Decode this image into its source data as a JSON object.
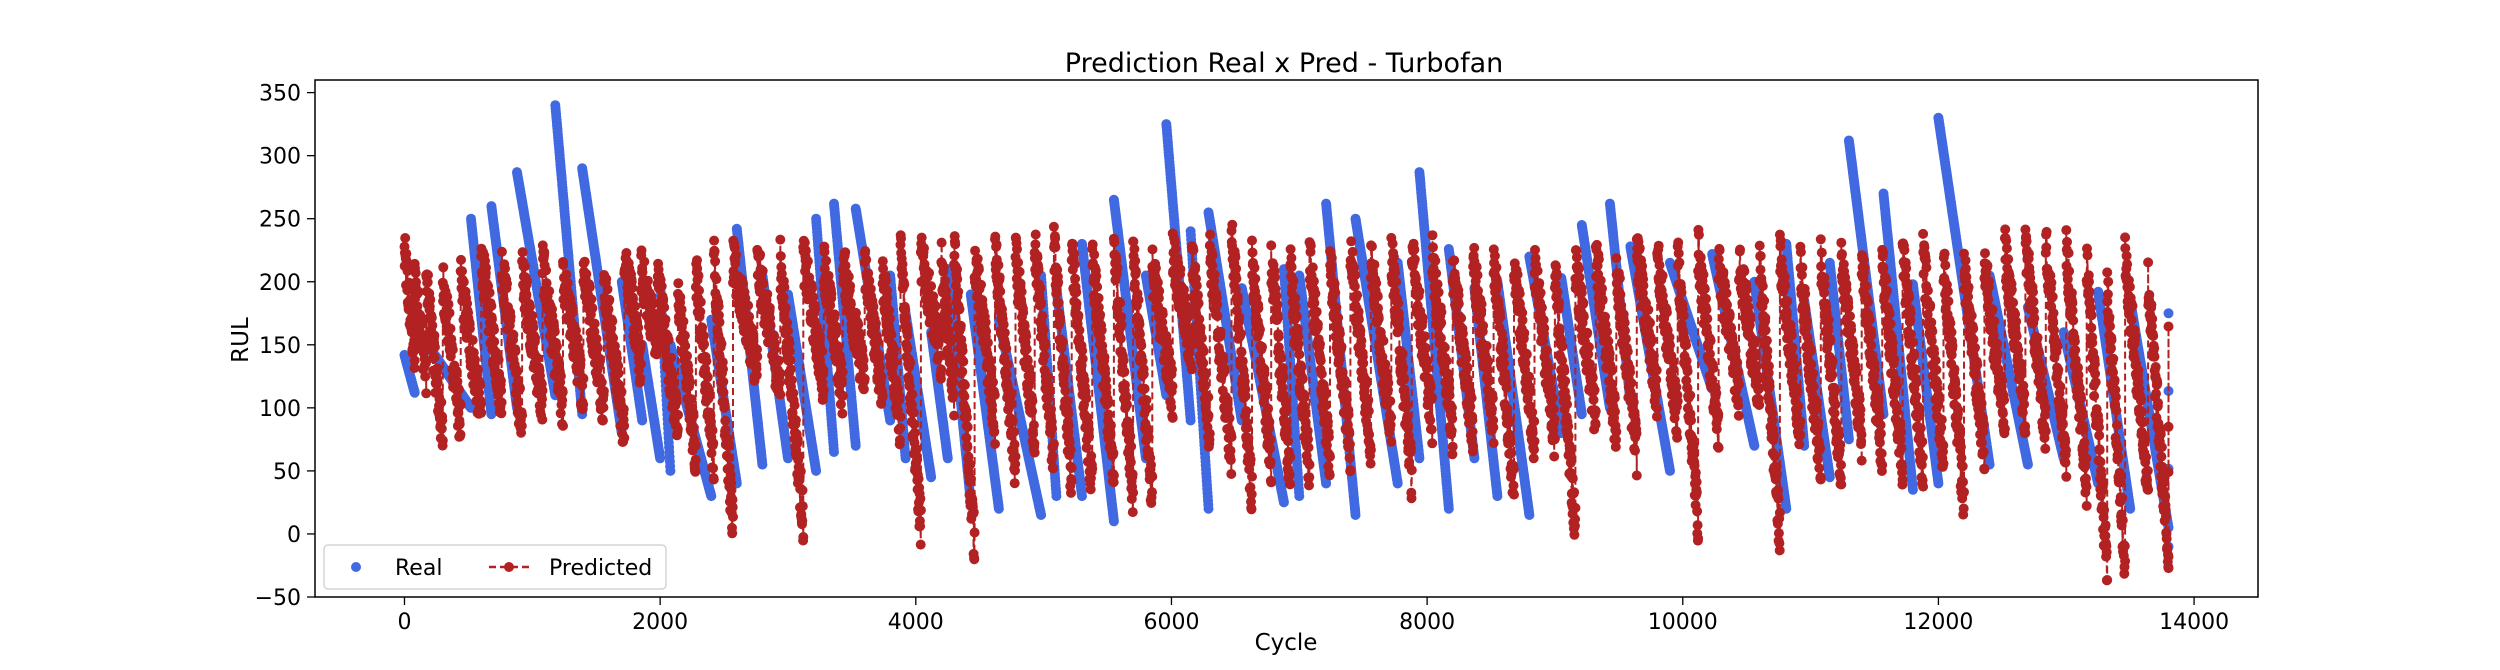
{
  "chart_data": {
    "type": "line",
    "title": "Prediction Real x Pred - Turbofan",
    "xlabel": "Cycle",
    "ylabel": "RUL",
    "xlim": [
      -700,
      14500
    ],
    "ylim": [
      -50,
      360
    ],
    "xticks": [
      0,
      2000,
      4000,
      6000,
      8000,
      10000,
      12000,
      14000
    ],
    "xtick_labels": [
      "0",
      "2000",
      "4000",
      "6000",
      "8000",
      "10000",
      "12000",
      "14000"
    ],
    "yticks": [
      -50,
      0,
      50,
      100,
      150,
      200,
      250,
      300,
      350
    ],
    "ytick_labels": [
      "−50",
      "0",
      "50",
      "100",
      "150",
      "200",
      "250",
      "300",
      "350"
    ],
    "grid": false,
    "legend": {
      "location": "lower-left",
      "columns": 2
    },
    "x_range": [
      0,
      13800
    ],
    "series": [
      {
        "name": "Real",
        "style": "markers",
        "color": "#4169e1",
        "note": "Sawtooth: each engine unit ramps down from a start RUL to an end RUL.",
        "segments": [
          [
            0,
            142,
            112
          ],
          [
            80,
            165,
            100
          ],
          [
            520,
            250,
            95
          ],
          [
            680,
            260,
            100
          ],
          [
            880,
            287,
            110
          ],
          [
            1180,
            340,
            95
          ],
          [
            1390,
            290,
            80
          ],
          [
            1700,
            200,
            90
          ],
          [
            1860,
            150,
            60
          ],
          [
            2000,
            200,
            50
          ],
          [
            2080,
            150,
            30
          ],
          [
            2400,
            170,
            40
          ],
          [
            2600,
            242,
            55
          ],
          [
            2800,
            205,
            60
          ],
          [
            3000,
            190,
            50
          ],
          [
            3220,
            250,
            65
          ],
          [
            3360,
            262,
            70
          ],
          [
            3530,
            258,
            90
          ],
          [
            3800,
            205,
            60
          ],
          [
            3920,
            175,
            45
          ],
          [
            4120,
            160,
            60
          ],
          [
            4250,
            210,
            25
          ],
          [
            4430,
            190,
            20
          ],
          [
            4650,
            170,
            15
          ],
          [
            4980,
            205,
            30
          ],
          [
            5100,
            195,
            30
          ],
          [
            5300,
            230,
            10
          ],
          [
            5550,
            265,
            60
          ],
          [
            5800,
            205,
            110
          ],
          [
            5960,
            325,
            90
          ],
          [
            6150,
            240,
            20
          ],
          [
            6290,
            255,
            90
          ],
          [
            6550,
            195,
            25
          ],
          [
            6880,
            210,
            30
          ],
          [
            7000,
            205,
            40
          ],
          [
            7210,
            262,
            15
          ],
          [
            7440,
            250,
            40
          ],
          [
            7770,
            215,
            60
          ],
          [
            7940,
            287,
            20
          ],
          [
            8170,
            226,
            60
          ],
          [
            8370,
            195,
            30
          ],
          [
            8550,
            200,
            15
          ],
          [
            8800,
            220,
            80
          ],
          [
            9050,
            203,
            95
          ],
          [
            9210,
            245,
            100
          ],
          [
            9430,
            262,
            105
          ],
          [
            9590,
            228,
            50
          ],
          [
            9900,
            215,
            115
          ],
          [
            10230,
            222,
            70
          ],
          [
            10560,
            200,
            20
          ],
          [
            10810,
            230,
            70
          ],
          [
            10950,
            185,
            45
          ],
          [
            11150,
            215,
            75
          ],
          [
            11300,
            312,
            95
          ],
          [
            11570,
            270,
            35
          ],
          [
            11800,
            198,
            40
          ],
          [
            12000,
            330,
            55
          ],
          [
            12400,
            205,
            55
          ],
          [
            12700,
            180,
            60
          ],
          [
            12980,
            160,
            40
          ],
          [
            13250,
            192,
            20
          ],
          [
            13500,
            185,
            5
          ],
          [
            13800,
            175,
            -10
          ]
        ]
      },
      {
        "name": "Predicted",
        "style": "dashed-line-with-markers",
        "color": "#b22222",
        "note": "Noisy descending sawtooth following each engine unit.",
        "segments": [
          [
            0,
            222,
            140
          ],
          [
            80,
            200,
            130
          ],
          [
            170,
            200,
            75
          ],
          [
            300,
            200,
            85
          ],
          [
            440,
            200,
            95
          ],
          [
            600,
            220,
            105
          ],
          [
            760,
            215,
            85
          ],
          [
            920,
            210,
            100
          ],
          [
            1080,
            215,
            95
          ],
          [
            1240,
            205,
            110
          ],
          [
            1400,
            215,
            100
          ],
          [
            1560,
            200,
            80
          ],
          [
            1720,
            225,
            130
          ],
          [
            1850,
            210,
            150
          ],
          [
            1980,
            205,
            80
          ],
          [
            2140,
            190,
            60
          ],
          [
            2280,
            210,
            55
          ],
          [
            2420,
            220,
            5
          ],
          [
            2570,
            215,
            130
          ],
          [
            2760,
            215,
            115
          ],
          [
            2940,
            215,
            10
          ],
          [
            3120,
            220,
            120
          ],
          [
            3280,
            215,
            110
          ],
          [
            3430,
            215,
            120
          ],
          [
            3600,
            215,
            110
          ],
          [
            3740,
            205,
            85
          ],
          [
            3880,
            225,
            5
          ],
          [
            4040,
            220,
            140
          ],
          [
            4200,
            215,
            110
          ],
          [
            4300,
            225,
            -10
          ],
          [
            4460,
            220,
            90
          ],
          [
            4620,
            225,
            50
          ],
          [
            4780,
            220,
            75
          ],
          [
            4930,
            230,
            55
          ],
          [
            5080,
            230,
            40
          ],
          [
            5220,
            225,
            35
          ],
          [
            5380,
            220,
            45
          ],
          [
            5550,
            230,
            30
          ],
          [
            5700,
            220,
            30
          ],
          [
            5850,
            210,
            110
          ],
          [
            6010,
            225,
            140
          ],
          [
            6160,
            220,
            80
          ],
          [
            6300,
            225,
            60
          ],
          [
            6470,
            240,
            30
          ],
          [
            6630,
            215,
            55
          ],
          [
            6780,
            220,
            45
          ],
          [
            6930,
            210,
            50
          ],
          [
            7080,
            220,
            55
          ],
          [
            7240,
            215,
            65
          ],
          [
            7400,
            225,
            70
          ],
          [
            7560,
            220,
            80
          ],
          [
            7720,
            225,
            45
          ],
          [
            7880,
            225,
            90
          ],
          [
            8040,
            220,
            80
          ],
          [
            8200,
            210,
            80
          ],
          [
            8360,
            215,
            90
          ],
          [
            8520,
            220,
            35
          ],
          [
            8680,
            215,
            70
          ],
          [
            8840,
            215,
            75
          ],
          [
            9000,
            205,
            5
          ],
          [
            9160,
            215,
            90
          ],
          [
            9320,
            220,
            80
          ],
          [
            9480,
            210,
            65
          ],
          [
            9640,
            225,
            110
          ],
          [
            9800,
            220,
            90
          ],
          [
            9960,
            220,
            10
          ],
          [
            10120,
            225,
            80
          ],
          [
            10280,
            215,
            110
          ],
          [
            10440,
            220,
            105
          ],
          [
            10600,
            215,
            0
          ],
          [
            10760,
            220,
            80
          ],
          [
            10920,
            210,
            50
          ],
          [
            11080,
            215,
            50
          ],
          [
            11240,
            215,
            75
          ],
          [
            11400,
            215,
            60
          ],
          [
            11560,
            215,
            55
          ],
          [
            11720,
            225,
            50
          ],
          [
            11880,
            220,
            60
          ],
          [
            12040,
            215,
            25
          ],
          [
            12200,
            210,
            65
          ],
          [
            12360,
            215,
            85
          ],
          [
            12520,
            225,
            90
          ],
          [
            12680,
            230,
            80
          ],
          [
            12840,
            230,
            60
          ],
          [
            13000,
            225,
            40
          ],
          [
            13160,
            215,
            -30
          ],
          [
            13320,
            200,
            -25
          ],
          [
            13460,
            220,
            40
          ],
          [
            13640,
            200,
            -20
          ],
          [
            13800,
            160,
            -15
          ]
        ]
      }
    ]
  }
}
